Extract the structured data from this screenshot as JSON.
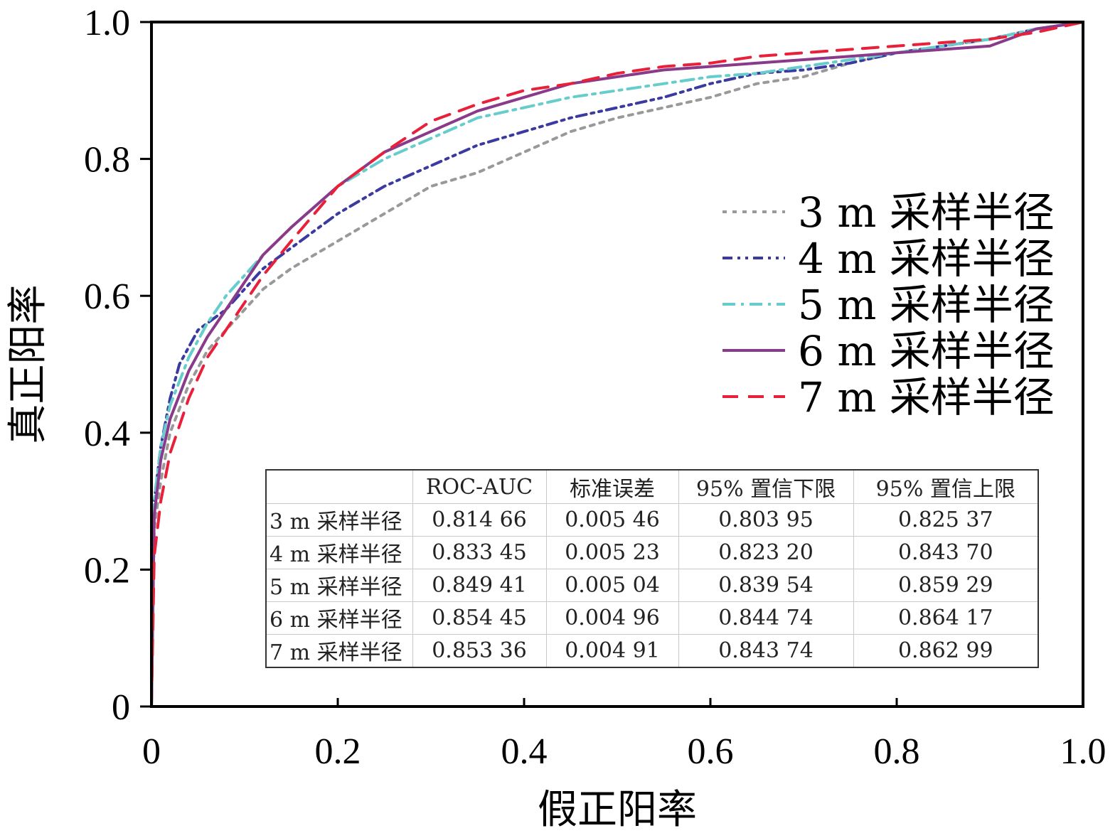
{
  "chart_data": {
    "type": "line",
    "title": "",
    "xlabel": "假正阳率",
    "ylabel": "真正阳率",
    "xlim": [
      0,
      1
    ],
    "ylim": [
      0,
      1
    ],
    "xticks": [
      "0",
      "0.2",
      "0.4",
      "0.6",
      "0.8",
      "1.0"
    ],
    "yticks": [
      "0",
      "0.2",
      "0.4",
      "0.6",
      "0.8",
      "1.0"
    ],
    "legend_position": "right",
    "series": [
      {
        "name": "3 m 采样半径",
        "color": "#999999",
        "dash": "dotted",
        "x": [
          0,
          0.003,
          0.01,
          0.02,
          0.04,
          0.06,
          0.08,
          0.1,
          0.12,
          0.15,
          0.2,
          0.25,
          0.3,
          0.35,
          0.4,
          0.45,
          0.5,
          0.55,
          0.6,
          0.65,
          0.7,
          0.75,
          0.8,
          0.85,
          0.9,
          0.95,
          1.0
        ],
        "y": [
          0,
          0.26,
          0.33,
          0.4,
          0.47,
          0.52,
          0.55,
          0.58,
          0.61,
          0.64,
          0.68,
          0.72,
          0.76,
          0.78,
          0.81,
          0.84,
          0.86,
          0.875,
          0.89,
          0.91,
          0.92,
          0.94,
          0.955,
          0.965,
          0.975,
          0.99,
          1.0
        ]
      },
      {
        "name": "4 m 采样半径",
        "color": "#3a3aa0",
        "dash": "dash-dot-dot",
        "x": [
          0,
          0.003,
          0.01,
          0.02,
          0.03,
          0.05,
          0.08,
          0.1,
          0.12,
          0.15,
          0.2,
          0.25,
          0.3,
          0.35,
          0.4,
          0.45,
          0.5,
          0.55,
          0.6,
          0.65,
          0.7,
          0.75,
          0.8,
          0.85,
          0.9,
          0.95,
          1.0
        ],
        "y": [
          0,
          0.3,
          0.38,
          0.45,
          0.5,
          0.55,
          0.58,
          0.61,
          0.64,
          0.67,
          0.72,
          0.76,
          0.79,
          0.82,
          0.84,
          0.86,
          0.875,
          0.89,
          0.91,
          0.925,
          0.93,
          0.94,
          0.955,
          0.965,
          0.975,
          0.99,
          1.0
        ]
      },
      {
        "name": "5 m 采样半径",
        "color": "#66cccc",
        "dash": "dash-dot",
        "x": [
          0,
          0.003,
          0.01,
          0.02,
          0.04,
          0.06,
          0.08,
          0.1,
          0.12,
          0.15,
          0.2,
          0.25,
          0.3,
          0.35,
          0.4,
          0.45,
          0.5,
          0.55,
          0.6,
          0.65,
          0.7,
          0.75,
          0.8,
          0.85,
          0.9,
          0.95,
          1.0
        ],
        "y": [
          0,
          0.3,
          0.38,
          0.44,
          0.51,
          0.56,
          0.6,
          0.63,
          0.66,
          0.7,
          0.76,
          0.8,
          0.83,
          0.86,
          0.875,
          0.89,
          0.9,
          0.91,
          0.92,
          0.925,
          0.935,
          0.945,
          0.955,
          0.965,
          0.975,
          0.99,
          1.0
        ]
      },
      {
        "name": "6 m 采样半径",
        "color": "#8a3a8a",
        "dash": "solid",
        "x": [
          0,
          0.003,
          0.01,
          0.02,
          0.04,
          0.06,
          0.08,
          0.1,
          0.12,
          0.15,
          0.2,
          0.25,
          0.3,
          0.35,
          0.4,
          0.45,
          0.5,
          0.55,
          0.6,
          0.65,
          0.7,
          0.75,
          0.8,
          0.85,
          0.9,
          0.92,
          0.95,
          1.0
        ],
        "y": [
          0,
          0.28,
          0.36,
          0.42,
          0.49,
          0.54,
          0.58,
          0.62,
          0.66,
          0.7,
          0.76,
          0.81,
          0.84,
          0.87,
          0.89,
          0.91,
          0.92,
          0.93,
          0.935,
          0.94,
          0.945,
          0.95,
          0.955,
          0.96,
          0.965,
          0.975,
          0.99,
          1.0
        ]
      },
      {
        "name": "7 m 采样半径",
        "color": "#e8203a",
        "dash": "dashed",
        "x": [
          0,
          0.003,
          0.01,
          0.02,
          0.04,
          0.06,
          0.08,
          0.1,
          0.12,
          0.15,
          0.2,
          0.25,
          0.3,
          0.35,
          0.4,
          0.45,
          0.5,
          0.55,
          0.6,
          0.65,
          0.7,
          0.75,
          0.8,
          0.85,
          0.9,
          0.95,
          1.0
        ],
        "y": [
          0,
          0.22,
          0.3,
          0.37,
          0.45,
          0.51,
          0.55,
          0.59,
          0.63,
          0.68,
          0.76,
          0.81,
          0.855,
          0.88,
          0.9,
          0.91,
          0.925,
          0.935,
          0.94,
          0.95,
          0.955,
          0.96,
          0.965,
          0.97,
          0.975,
          0.985,
          1.0
        ]
      }
    ]
  },
  "table": {
    "headers": [
      "",
      "ROC-AUC",
      "标准误差",
      "95% 置信下限",
      "95% 置信上限"
    ],
    "rows": [
      [
        "3 m 采样半径",
        "0.814 66",
        "0.005 46",
        "0.803 95",
        "0.825 37"
      ],
      [
        "4 m 采样半径",
        "0.833 45",
        "0.005 23",
        "0.823 20",
        "0.843 70"
      ],
      [
        "5 m 采样半径",
        "0.849 41",
        "0.005 04",
        "0.839 54",
        "0.859 29"
      ],
      [
        "6 m 采样半径",
        "0.854 45",
        "0.004 96",
        "0.844 74",
        "0.864 17"
      ],
      [
        "7 m 采样半径",
        "0.853 36",
        "0.004 91",
        "0.843 74",
        "0.862 99"
      ]
    ]
  }
}
